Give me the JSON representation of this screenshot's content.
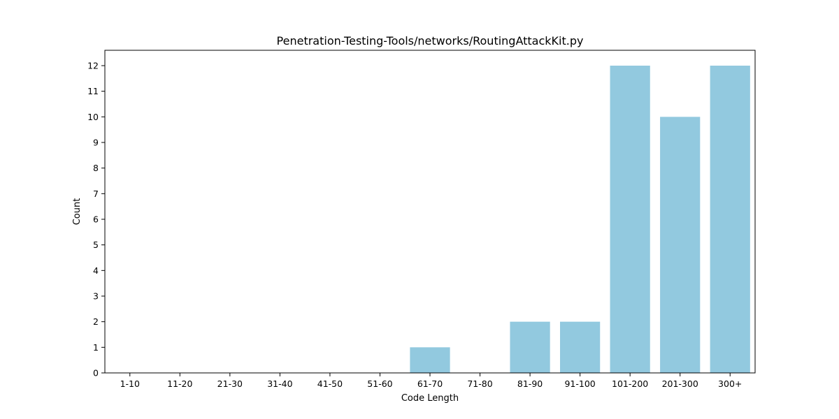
{
  "chart_data": {
    "type": "bar",
    "title": "Penetration-Testing-Tools/networks/RoutingAttackKit.py",
    "xlabel": "Code Length",
    "ylabel": "Count",
    "categories": [
      "1-10",
      "11-20",
      "21-30",
      "31-40",
      "41-50",
      "51-60",
      "61-70",
      "71-80",
      "81-90",
      "91-100",
      "101-200",
      "201-300",
      "300+"
    ],
    "values": [
      0,
      0,
      0,
      0,
      0,
      0,
      1,
      0,
      2,
      2,
      12,
      10,
      12
    ],
    "ylim": [
      0,
      12.6
    ],
    "yticks": [
      0,
      1,
      2,
      3,
      4,
      5,
      6,
      7,
      8,
      9,
      10,
      11,
      12
    ],
    "grid": false,
    "bar_color": "#92c9df",
    "axis_color": "#000000"
  }
}
